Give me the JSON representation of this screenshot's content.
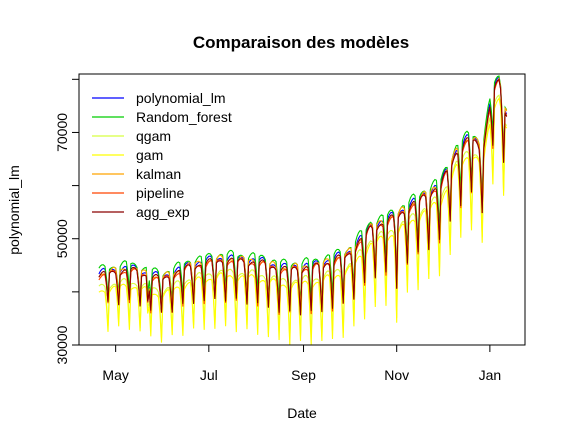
{
  "chart_data": {
    "type": "line",
    "title": "Comparaison des modèles",
    "xlabel": "Date",
    "ylabel": "polynomial_lm",
    "x_start": "2021-04-20",
    "x_end": "2022-01-12",
    "x_ticks": [
      {
        "date": "2021-05-01",
        "label": "May"
      },
      {
        "date": "2021-07-01",
        "label": "Jul"
      },
      {
        "date": "2021-09-01",
        "label": "Sep"
      },
      {
        "date": "2021-11-01",
        "label": "Nov"
      },
      {
        "date": "2022-01-01",
        "label": "Jan"
      }
    ],
    "y_ticks": [
      30000,
      50000,
      70000
    ],
    "ylim": [
      30000,
      81000
    ],
    "grid": false,
    "legend_position": "top-left",
    "baseline": [
      [
        "2021-04-20",
        42000
      ],
      [
        "2021-05-10",
        43000
      ],
      [
        "2021-05-31",
        41000
      ],
      [
        "2021-06-20",
        43500
      ],
      [
        "2021-07-10",
        44500
      ],
      [
        "2021-08-01",
        44000
      ],
      [
        "2021-08-20",
        42500
      ],
      [
        "2021-09-10",
        43000
      ],
      [
        "2021-09-30",
        45000
      ],
      [
        "2021-10-15",
        50000
      ],
      [
        "2021-10-31",
        52000
      ],
      [
        "2021-11-15",
        55000
      ],
      [
        "2021-11-30",
        58000
      ],
      [
        "2021-12-10",
        64000
      ],
      [
        "2021-12-20",
        67000
      ],
      [
        "2021-12-27",
        64000
      ],
      [
        "2022-01-03",
        76000
      ],
      [
        "2022-01-07",
        77000
      ],
      [
        "2022-01-12",
        71000
      ]
    ],
    "series": [
      {
        "name": "polynomial_lm",
        "color": "#0000ff",
        "offset": 500,
        "dip": 1.0
      },
      {
        "name": "Random_forest",
        "color": "#00cd00",
        "offset": 1200,
        "dip": 0.85
      },
      {
        "name": "qgam",
        "color": "#d8ff40",
        "offset": -2200,
        "dip": 1.35
      },
      {
        "name": "gam",
        "color": "#ffff00",
        "offset": -3000,
        "dip": 1.4
      },
      {
        "name": "kalman",
        "color": "#ffa500",
        "offset": 300,
        "dip": 0.95
      },
      {
        "name": "pipeline",
        "color": "#ff4500",
        "offset": -200,
        "dip": 1.0
      },
      {
        "name": "agg_exp",
        "color": "#8b0000",
        "offset": 0,
        "dip": 1.0
      }
    ],
    "weekly_dip_start": 4500,
    "weekly_dip_end": 9000
  }
}
